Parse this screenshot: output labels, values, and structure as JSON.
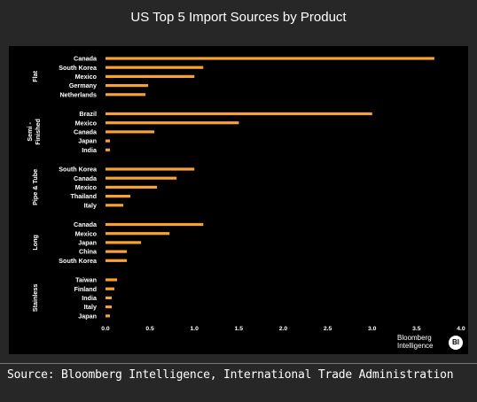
{
  "title": "US Top 5 Import Sources by Product",
  "source": "Source: Bloomberg Intelligence, International Trade Administration",
  "logo": {
    "line1": "Bloomberg",
    "line2": "Intelligence",
    "badge": "BI"
  },
  "colors": {
    "bar": "#f7a233",
    "background": "#000000",
    "frame": "#272727",
    "text": "#ffffff"
  },
  "chart_data": {
    "type": "bar",
    "orientation": "horizontal",
    "title": "US Top 5 Import Sources by Product",
    "xlim": [
      0,
      4
    ],
    "xticks": [
      "0.0",
      "0.5",
      "1.0",
      "1.5",
      "2.0",
      "2.5",
      "3.0",
      "3.5",
      "4.0"
    ],
    "grid": false,
    "groups": [
      {
        "name": "Flat",
        "categories": [
          "Canada",
          "South Korea",
          "Mexico",
          "Germany",
          "Netherlands"
        ],
        "values": [
          3.7,
          1.1,
          1.0,
          0.48,
          0.45
        ]
      },
      {
        "name": "Semi - Finished",
        "categories": [
          "Brazil",
          "Mexico",
          "Canada",
          "Japan",
          "India"
        ],
        "values": [
          3.0,
          1.5,
          0.55,
          0.05,
          0.05
        ]
      },
      {
        "name": "Pipe & Tube",
        "categories": [
          "South Korea",
          "Canada",
          "Mexico",
          "Thailand",
          "Italy"
        ],
        "values": [
          1.0,
          0.8,
          0.58,
          0.28,
          0.2
        ]
      },
      {
        "name": "Long",
        "categories": [
          "Canada",
          "Mexico",
          "Japan",
          "China",
          "South Korea"
        ],
        "values": [
          1.1,
          0.72,
          0.4,
          0.24,
          0.24
        ]
      },
      {
        "name": "Stainless",
        "categories": [
          "Taiwan",
          "Finland",
          "India",
          "Italy",
          "Japan"
        ],
        "values": [
          0.13,
          0.1,
          0.07,
          0.07,
          0.05
        ]
      }
    ]
  }
}
